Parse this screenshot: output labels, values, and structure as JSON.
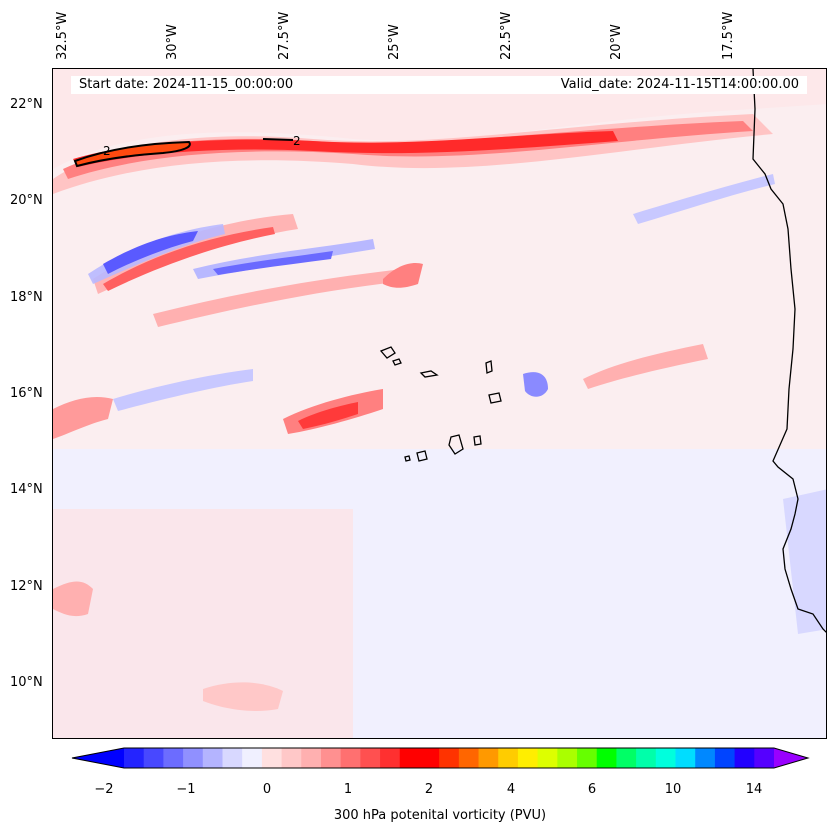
{
  "map": {
    "lon_labels": [
      "32.5°W",
      "30°W",
      "27.5°W",
      "25°W",
      "22.5°W",
      "20°W",
      "17.5°W"
    ],
    "lat_labels": [
      "22°N",
      "20°N",
      "18°N",
      "16°N",
      "14°N",
      "12°N",
      "10°N"
    ],
    "start_date": "Start date: 2024-11-15_00:00:00",
    "valid_date": "Valid_date: 2024-11-15T14:00:00.00",
    "contour_label": "2"
  },
  "colorbar": {
    "label": "300 hPa potenital vorticity (PVU)",
    "ticks": [
      "−2",
      "−1",
      "0",
      "1",
      "2",
      "4",
      "6",
      "10",
      "14"
    ],
    "colors": [
      "#0000ff",
      "#2424ff",
      "#4848ff",
      "#6c6cff",
      "#9090ff",
      "#b4b4ff",
      "#d8d8ff",
      "#f0f0ff",
      "#ffe0e0",
      "#ffc8c8",
      "#ffb0b0",
      "#ff9090",
      "#ff7070",
      "#ff5050",
      "#ff3030",
      "#ff0000",
      "#ff0000",
      "#ff3300",
      "#ff6600",
      "#ff9900",
      "#ffcc00",
      "#ffee00",
      "#ddff00",
      "#aaff00",
      "#66ff00",
      "#00ff00",
      "#00ff66",
      "#00ffaa",
      "#00ffdd",
      "#00ddff",
      "#0088ff",
      "#0044ff",
      "#2200ff",
      "#5500ff",
      "#9900ff"
    ]
  }
}
